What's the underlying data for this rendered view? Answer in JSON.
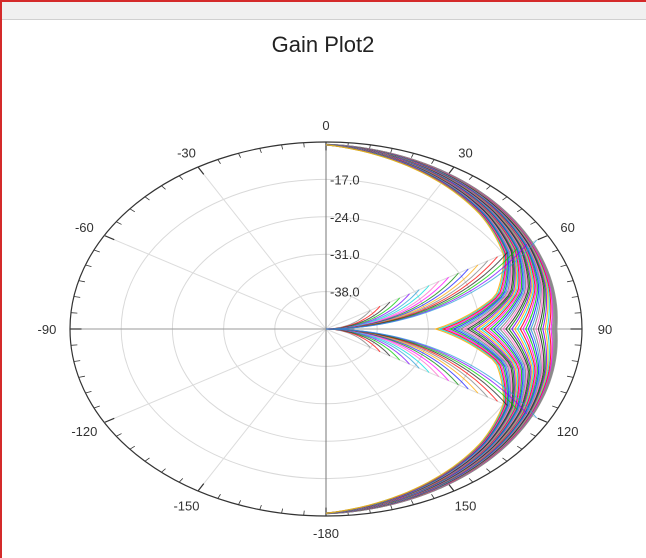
{
  "window": {
    "accent_color": "#d42a2a"
  },
  "chart_data": {
    "type": "polar-line",
    "title": "Gain Plot2",
    "angle_ticks": [
      "0",
      "30",
      "60",
      "90",
      "120",
      "150",
      "-180",
      "-150",
      "-120",
      "-90",
      "-60",
      "-30"
    ],
    "angle_tick_values": [
      0,
      30,
      60,
      90,
      120,
      150,
      180,
      -150,
      -120,
      -90,
      -60,
      -30
    ],
    "radial_labels": [
      "-17.0",
      "-24.0",
      "-31.0",
      "-38.0"
    ],
    "radial_values": [
      -17,
      -24,
      -31,
      -38
    ],
    "radial_range": [
      -45,
      -10
    ],
    "grid": true,
    "series_envelope": {
      "description_points": "gain traces vs theta (deg), many overlaid colored curves",
      "theta": [
        0,
        15,
        30,
        45,
        60,
        75,
        90,
        105,
        120,
        135,
        150,
        165,
        180
      ],
      "gain_outer": [
        -10.5,
        -11,
        -11.5,
        -12,
        -12.5,
        -13,
        -13.5,
        -13,
        -12.5,
        -12,
        -11.5,
        -11,
        -10.5
      ],
      "gain_inner_low": [
        -10.5,
        -12,
        -13.5,
        -15,
        -17,
        -21,
        -30,
        -21,
        -17,
        -15,
        -13.5,
        -12,
        -10.5
      ]
    },
    "series_colors": [
      "#7f7f7f",
      "#2aa0d8",
      "#1a1aff",
      "#00cc00",
      "#ff00ff",
      "#ff0000",
      "#00dddd",
      "#ffaa00",
      "#7a00ff",
      "#008800",
      "#222222",
      "#ff66cc"
    ]
  }
}
